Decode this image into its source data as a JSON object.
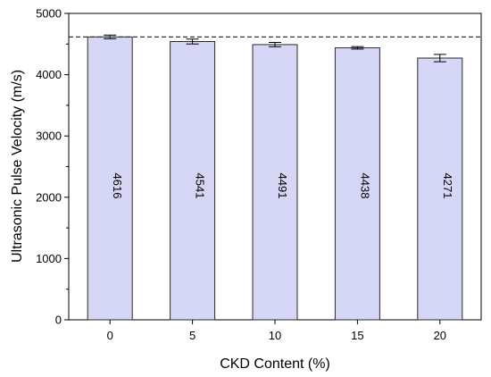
{
  "chart_data": {
    "type": "bar",
    "title": "",
    "xlabel": "CKD Content (%)",
    "ylabel": "Ultrasonic Pulse Velocity (m/s)",
    "ylim": [
      0,
      5000
    ],
    "yticks": [
      "0",
      "1000",
      "2000",
      "3000",
      "4000",
      "5000"
    ],
    "categories": [
      "0",
      "5",
      "10",
      "15",
      "20"
    ],
    "values": [
      4616,
      4541,
      4491,
      4438,
      4271
    ],
    "value_labels": [
      "4616",
      "4541",
      "4491",
      "4438",
      "4271"
    ],
    "error": [
      30,
      40,
      35,
      20,
      60
    ],
    "reference_line": 4616,
    "grid": false,
    "bar_color": "#d6d6f7",
    "bar_edge_color": "#2b2b2b",
    "reference_line_color": "#333333"
  }
}
